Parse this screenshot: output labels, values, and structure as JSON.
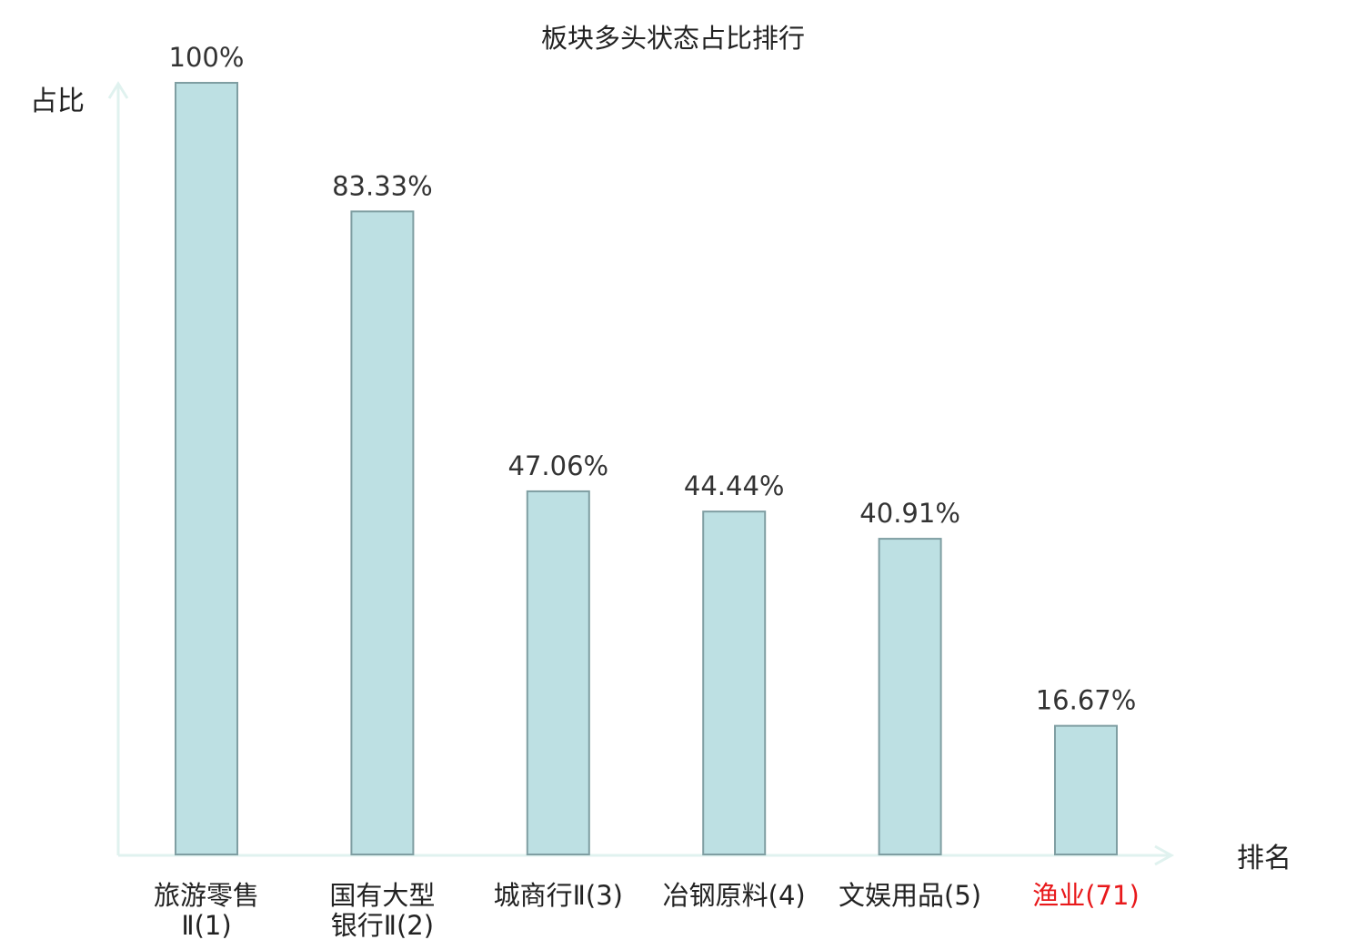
{
  "chart_data": {
    "type": "bar",
    "title": "板块多头状态占比排行",
    "xlabel": "排名",
    "ylabel": "占比",
    "ylim": [
      0,
      100
    ],
    "grid": false,
    "categories": [
      {
        "name": "旅游零售Ⅱ",
        "rank": "(1)",
        "lines": [
          "旅游零售",
          "Ⅱ(1)"
        ]
      },
      {
        "name": "国有大型银行Ⅱ",
        "rank": "(2)",
        "lines": [
          "国有大型",
          "银行Ⅱ(2)"
        ]
      },
      {
        "name": "城商行Ⅱ",
        "rank": "(3)",
        "lines": [
          "城商行Ⅱ(3)"
        ]
      },
      {
        "name": "冶钢原料",
        "rank": "(4)",
        "lines": [
          "冶钢原料(4)"
        ]
      },
      {
        "name": "文娱用品",
        "rank": "(5)",
        "lines": [
          "文娱用品(5)"
        ]
      },
      {
        "name": "渔业",
        "rank": "(71)",
        "lines": [
          "渔业(71)"
        ],
        "highlight": true
      }
    ],
    "values": [
      100,
      83.33,
      47.06,
      44.44,
      40.91,
      16.67
    ],
    "value_labels": [
      "100%",
      "83.33%",
      "47.06%",
      "44.44%",
      "40.91%",
      "16.67%"
    ]
  },
  "colors": {
    "bar_fill": "#bde0e3",
    "bar_stroke": "#7f9ea2",
    "axis": "#e0f2ef",
    "text": "#222222",
    "value_text": "#333333",
    "highlight_text": "#e8191b"
  }
}
